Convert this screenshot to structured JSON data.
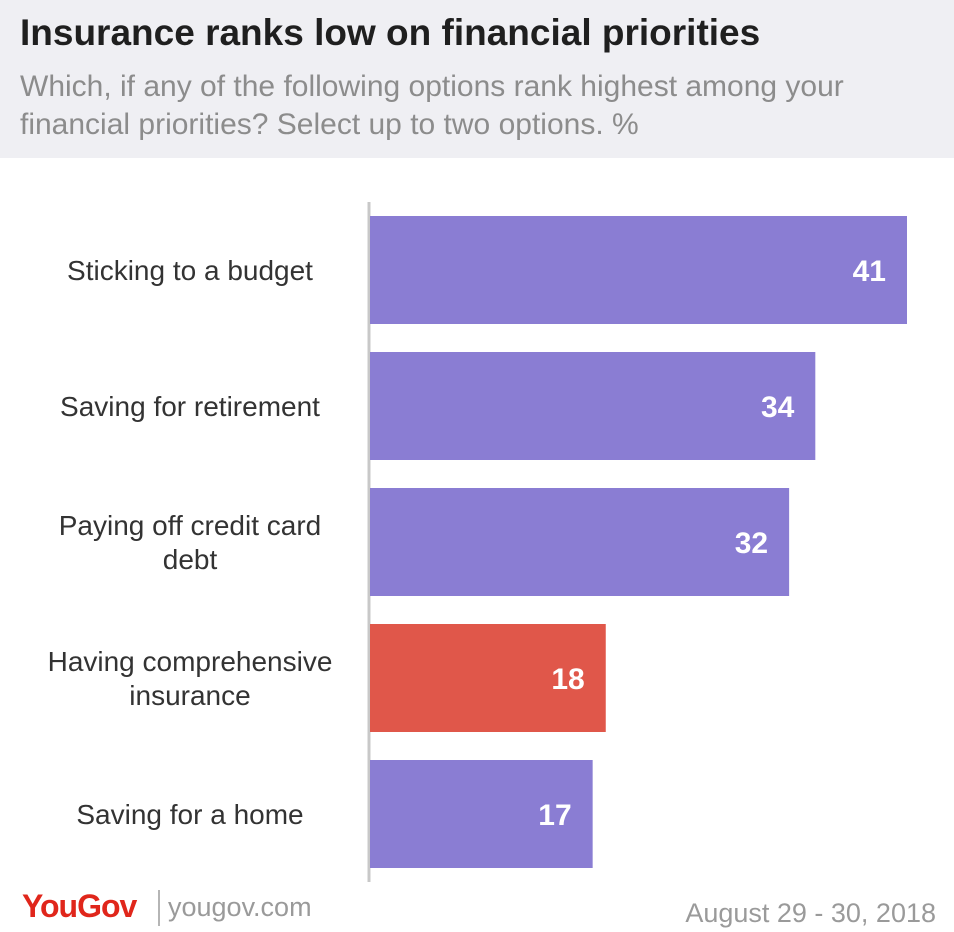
{
  "header": {
    "title": "Insurance ranks low on financial priorities",
    "subtitle": "Which, if any of the following options rank highest among your financial priorities? Select up to two options. %"
  },
  "chart_data": {
    "type": "bar",
    "orientation": "horizontal",
    "title": "Insurance ranks low on financial priorities",
    "subtitle": "Which, if any of the following options rank highest among your financial priorities? Select up to two options. %",
    "categories": [
      [
        "Sticking to a budget"
      ],
      [
        "Saving for retirement"
      ],
      [
        "Paying off credit card",
        "debt"
      ],
      [
        "Having comprehensive",
        "insurance"
      ],
      [
        "Saving for a home"
      ]
    ],
    "values": [
      41,
      34,
      32,
      18,
      17
    ],
    "highlight_index": 3,
    "colors": {
      "default": "#8a7dd3",
      "highlight": "#e0574a",
      "axis": "#c8c8c8"
    },
    "xlim": [
      0,
      41
    ],
    "grid": false,
    "data_labels": true
  },
  "footer": {
    "brand": "YouGov",
    "url": "yougov.com",
    "date": "August 29 - 30, 2018"
  }
}
